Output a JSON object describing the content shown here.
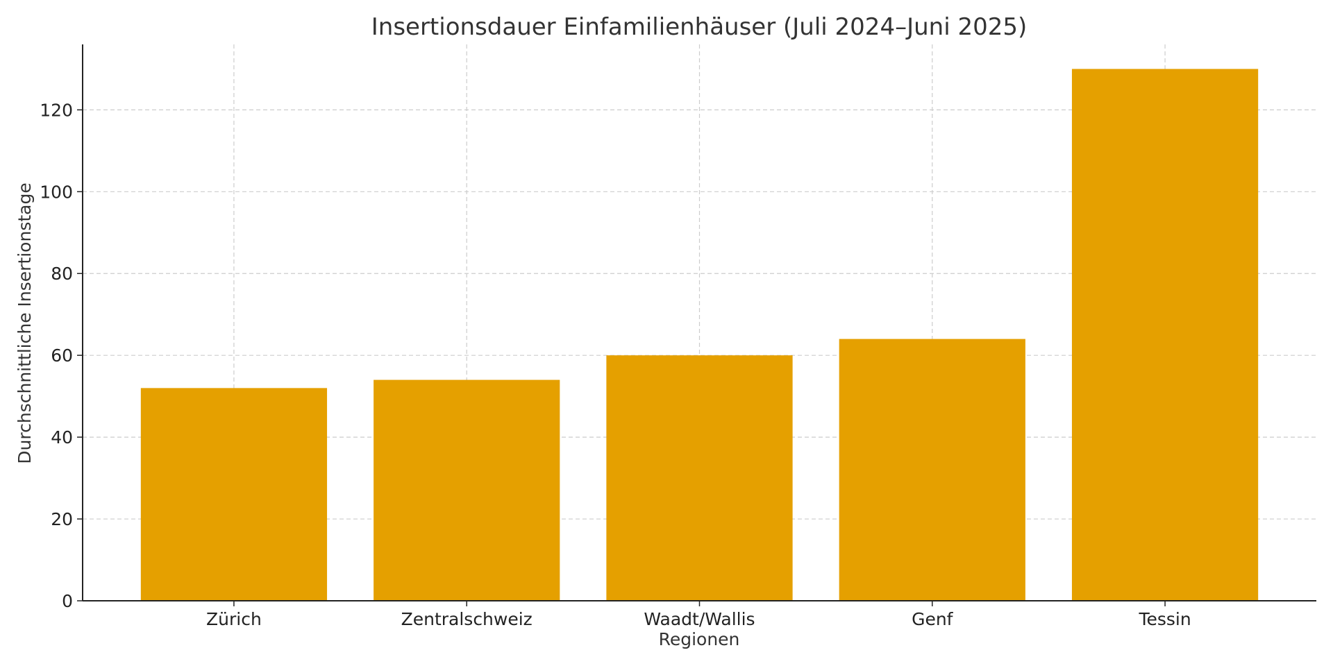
{
  "chart_data": {
    "type": "bar",
    "title": "Insertionsdauer Einfamilienhäuser (Juli 2024–Juni 2025)",
    "xlabel": "Regionen",
    "ylabel": "Durchschnittliche Insertionstage",
    "categories": [
      "Zürich",
      "Zentralschweiz",
      "Waadt/Wallis",
      "Genf",
      "Tessin"
    ],
    "values": [
      52,
      54,
      60,
      64,
      130
    ],
    "ylim": [
      0,
      136
    ],
    "yticks": [
      0,
      20,
      40,
      60,
      80,
      100,
      120
    ],
    "grid": true,
    "bar_color": "#E5A000",
    "legend": "none"
  }
}
